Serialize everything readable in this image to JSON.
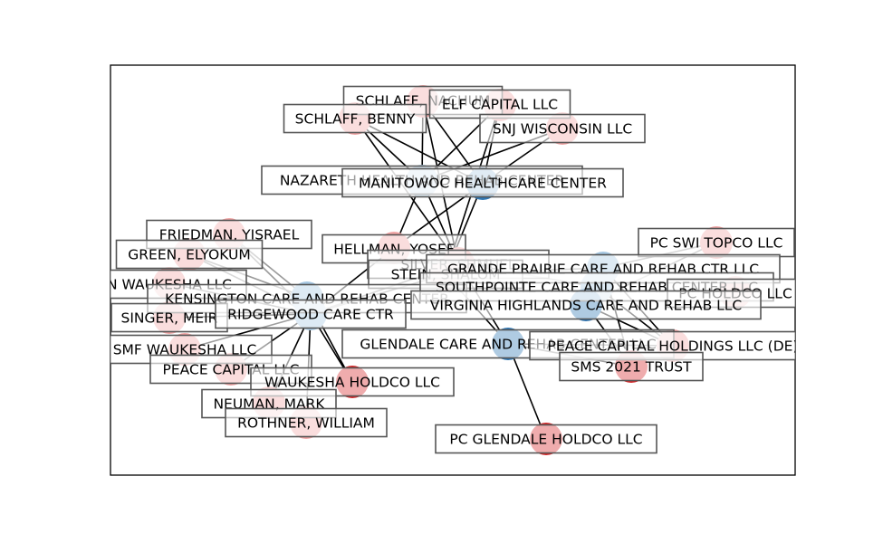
{
  "colors": {
    "facility": "#a6c8e3",
    "facility_dark": "#2f77b4",
    "owner": "#f2a5a5",
    "owner_dark": "#d62728",
    "edge_dark": "#000000",
    "edge_light": "#9a9a9a",
    "frame": "#000000"
  },
  "nodes": [
    {
      "id": "schlaff_nachum",
      "label": "SCHLAFF, NACHUM",
      "kind": "owner"
    },
    {
      "id": "elf_capital",
      "label": "ELF CAPITAL LLC",
      "kind": "owner"
    },
    {
      "id": "schlaff_benny",
      "label": "SCHLAFF, BENNY",
      "kind": "owner"
    },
    {
      "id": "snj_wisconsin",
      "label": "SNJ WISCONSIN LLC",
      "kind": "owner"
    },
    {
      "id": "nazareth",
      "label": "NAZARETH HEALTH AND REHAB CENTER",
      "kind": "facility"
    },
    {
      "id": "manitowoc",
      "label": "MANITOWOC HEALTHCARE CENTER",
      "kind": "facility_dark"
    },
    {
      "id": "friedman",
      "label": "FRIEDMAN, YISRAEL",
      "kind": "owner"
    },
    {
      "id": "green",
      "label": "GREEN, ELYOKUM",
      "kind": "owner"
    },
    {
      "id": "hellman",
      "label": "HELLMAN, YOSEF",
      "kind": "owner"
    },
    {
      "id": "silver",
      "label": "SILVER, SHMUEL",
      "kind": "owner"
    },
    {
      "id": "stein",
      "label": "STEIN, SHALOM",
      "kind": "owner"
    },
    {
      "id": "pc_swi_topco",
      "label": "PC SWI TOPCO LLC",
      "kind": "owner"
    },
    {
      "id": "n_waukesha",
      "label": "N WAUKESHA LLC",
      "kind": "owner"
    },
    {
      "id": "grande_prairie",
      "label": "GRANDE PRAIRIE CARE AND REHAB CTR LLC",
      "kind": "facility"
    },
    {
      "id": "kensington",
      "label": "KENSINGTON CARE AND REHAB CENTER",
      "kind": "facility"
    },
    {
      "id": "southpointe",
      "label": "SOUTHPOINTE CARE AND REHAB CENTER LLC",
      "kind": "facility"
    },
    {
      "id": "pc_holdco_right",
      "label": "PC HOLDCO LLC",
      "kind": "owner"
    },
    {
      "id": "singer",
      "label": "SINGER, MEIR",
      "kind": "owner"
    },
    {
      "id": "ridgewood",
      "label": "RIDGEWOOD CARE CTR",
      "kind": "facility"
    },
    {
      "id": "virginia",
      "label": "VIRGINIA HIGHLANDS CARE AND REHAB LLC",
      "kind": "facility_dark"
    },
    {
      "id": "smf_waukesha",
      "label": "SMF WAUKESHA LLC",
      "kind": "owner"
    },
    {
      "id": "glendale",
      "label": "GLENDALE CARE AND REHAB CENTER LLC",
      "kind": "facility_dark"
    },
    {
      "id": "peace_capital_holdings",
      "label": "PEACE CAPITAL HOLDINGS LLC (DE)",
      "kind": "owner"
    },
    {
      "id": "peace_capital",
      "label": "PEACE CAPITAL LLC",
      "kind": "owner"
    },
    {
      "id": "sms_2021",
      "label": "SMS 2021 TRUST",
      "kind": "owner_dark"
    },
    {
      "id": "waukesha_holdco",
      "label": "WAUKESHA HOLDCO LLC",
      "kind": "owner_dark"
    },
    {
      "id": "neuman",
      "label": "NEUMAN, MARK",
      "kind": "owner"
    },
    {
      "id": "rothner",
      "label": "ROTHNER, WILLIAM",
      "kind": "owner"
    },
    {
      "id": "pc_glendale",
      "label": "PC GLENDALE HOLDCO LLC",
      "kind": "owner_dark"
    }
  ],
  "edges": [
    {
      "from": "schlaff_nachum",
      "to": "nazareth",
      "style": "dark"
    },
    {
      "from": "schlaff_nachum",
      "to": "manitowoc",
      "style": "dark"
    },
    {
      "from": "elf_capital",
      "to": "nazareth",
      "style": "dark"
    },
    {
      "from": "elf_capital",
      "to": "manitowoc",
      "style": "dark"
    },
    {
      "from": "schlaff_benny",
      "to": "nazareth",
      "style": "dark"
    },
    {
      "from": "schlaff_benny",
      "to": "manitowoc",
      "style": "dark"
    },
    {
      "from": "snj_wisconsin",
      "to": "nazareth",
      "style": "dark"
    },
    {
      "from": "snj_wisconsin",
      "to": "manitowoc",
      "style": "dark"
    },
    {
      "from": "schlaff_nachum",
      "to": "silver",
      "style": "dark"
    },
    {
      "from": "elf_capital",
      "to": "stein",
      "style": "dark"
    },
    {
      "from": "schlaff_benny",
      "to": "silver",
      "style": "dark"
    },
    {
      "from": "nazareth",
      "to": "hellman",
      "style": "dark"
    },
    {
      "from": "manitowoc",
      "to": "hellman",
      "style": "dark"
    },
    {
      "from": "nazareth",
      "to": "silver",
      "style": "dark"
    },
    {
      "from": "manitowoc",
      "to": "stein",
      "style": "dark"
    },
    {
      "from": "hellman",
      "to": "ridgewood",
      "style": "dark"
    },
    {
      "from": "ridgewood",
      "to": "friedman",
      "style": "light"
    },
    {
      "from": "ridgewood",
      "to": "green",
      "style": "light"
    },
    {
      "from": "ridgewood",
      "to": "n_waukesha",
      "style": "dark"
    },
    {
      "from": "ridgewood",
      "to": "singer",
      "style": "dark"
    },
    {
      "from": "ridgewood",
      "to": "smf_waukesha",
      "style": "dark"
    },
    {
      "from": "ridgewood",
      "to": "peace_capital",
      "style": "dark"
    },
    {
      "from": "ridgewood",
      "to": "waukesha_holdco",
      "style": "dark"
    },
    {
      "from": "ridgewood",
      "to": "neuman",
      "style": "dark"
    },
    {
      "from": "ridgewood",
      "to": "rothner",
      "style": "dark"
    },
    {
      "from": "ridgewood",
      "to": "silver",
      "style": "light"
    },
    {
      "from": "ridgewood",
      "to": "stein",
      "style": "light"
    },
    {
      "from": "kensington",
      "to": "friedman",
      "style": "light"
    },
    {
      "from": "kensington",
      "to": "green",
      "style": "light"
    },
    {
      "from": "kensington",
      "to": "waukesha_holdco",
      "style": "dark"
    },
    {
      "from": "grande_prairie",
      "to": "stein",
      "style": "light"
    },
    {
      "from": "grande_prairie",
      "to": "pc_swi_topco",
      "style": "light"
    },
    {
      "from": "grande_prairie",
      "to": "peace_capital_holdings",
      "style": "dark"
    },
    {
      "from": "grande_prairie",
      "to": "sms_2021",
      "style": "dark"
    },
    {
      "from": "virginia",
      "to": "pc_swi_topco",
      "style": "light"
    },
    {
      "from": "virginia",
      "to": "peace_capital_holdings",
      "style": "dark"
    },
    {
      "from": "virginia",
      "to": "sms_2021",
      "style": "dark"
    },
    {
      "from": "southpointe",
      "to": "silver",
      "style": "light"
    },
    {
      "from": "southpointe",
      "to": "peace_capital_holdings",
      "style": "dark"
    },
    {
      "from": "glendale",
      "to": "silver",
      "style": "dark"
    },
    {
      "from": "glendale",
      "to": "stein",
      "style": "dark"
    },
    {
      "from": "glendale",
      "to": "pc_glendale",
      "style": "dark"
    },
    {
      "from": "glendale",
      "to": "peace_capital_holdings",
      "style": "dark"
    },
    {
      "from": "glendale",
      "to": "sms_2021",
      "style": "dark"
    }
  ]
}
